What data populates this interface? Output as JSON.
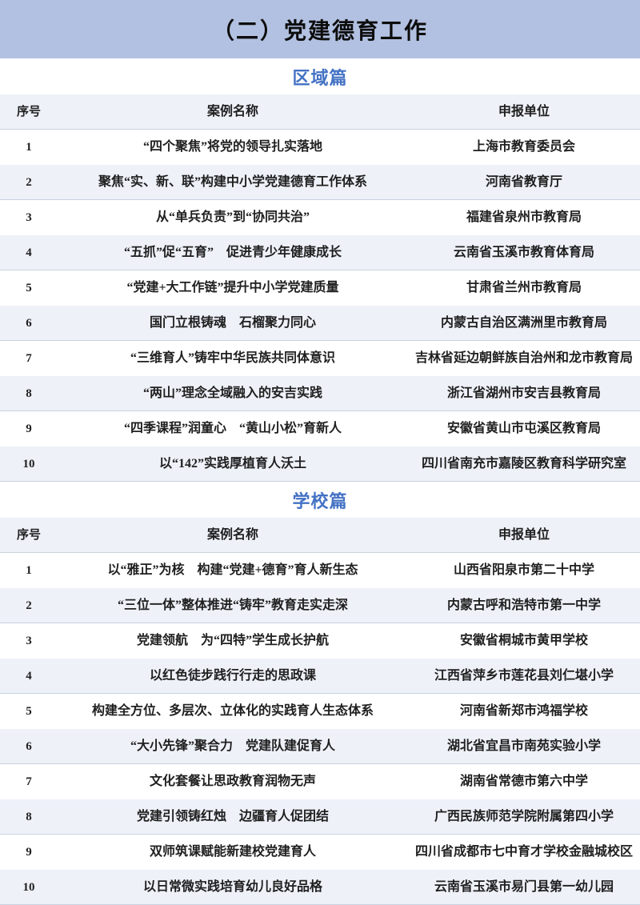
{
  "page": {
    "title": "（二）党建德育工作",
    "colors": {
      "banner_bg": "#b2c1e1",
      "section_title": "#4472c4",
      "row_shaded": "#eef1f8",
      "row_border": "#c9d2e0",
      "text": "#1f1f1f"
    }
  },
  "table_headers": {
    "index": "序号",
    "case_name": "案例名称",
    "unit": "申报单位"
  },
  "sections": [
    {
      "title": "区域篇",
      "rows": [
        {
          "index": "1",
          "case": "“四个聚焦”将党的领导扎实落地",
          "unit": "上海市教育委员会"
        },
        {
          "index": "2",
          "case": "聚焦“实、新、联”构建中小学党建德育工作体系",
          "unit": "河南省教育厅"
        },
        {
          "index": "3",
          "case": "从“单兵负责”到“协同共治”",
          "unit": "福建省泉州市教育局"
        },
        {
          "index": "4",
          "case": "“五抓”促“五育”　促进青少年健康成长",
          "unit": "云南省玉溪市教育体育局"
        },
        {
          "index": "5",
          "case": "“党建+大工作链”提升中小学党建质量",
          "unit": "甘肃省兰州市教育局"
        },
        {
          "index": "6",
          "case": "国门立根铸魂　石榴聚力同心",
          "unit": "内蒙古自治区满洲里市教育局"
        },
        {
          "index": "7",
          "case": "“三维育人”铸牢中华民族共同体意识",
          "unit": "吉林省延边朝鲜族自治州和龙市教育局"
        },
        {
          "index": "8",
          "case": "“两山”理念全域融入的安吉实践",
          "unit": "浙江省湖州市安吉县教育局"
        },
        {
          "index": "9",
          "case": "“四季课程”润童心　“黄山小松”育新人",
          "unit": "安徽省黄山市屯溪区教育局"
        },
        {
          "index": "10",
          "case": "以“142”实践厚植育人沃土",
          "unit": "四川省南充市嘉陵区教育科学研究室"
        }
      ]
    },
    {
      "title": "学校篇",
      "rows": [
        {
          "index": "1",
          "case": "以“雅正”为核　构建“党建+德育”育人新生态",
          "unit": "山西省阳泉市第二十中学"
        },
        {
          "index": "2",
          "case": "“三位一体”整体推进“铸牢”教育走实走深",
          "unit": "内蒙古呼和浩特市第一中学"
        },
        {
          "index": "3",
          "case": "党建领航　为“四特”学生成长护航",
          "unit": "安徽省桐城市黄甲学校"
        },
        {
          "index": "4",
          "case": "以红色徒步践行行走的思政课",
          "unit": "江西省萍乡市莲花县刘仁堪小学"
        },
        {
          "index": "5",
          "case": "构建全方位、多层次、立体化的实践育人生态体系",
          "unit": "河南省新郑市鸿福学校"
        },
        {
          "index": "6",
          "case": "“大小先锋”聚合力　党建队建促育人",
          "unit": "湖北省宜昌市南苑实验小学"
        },
        {
          "index": "7",
          "case": "文化套餐让思政教育润物无声",
          "unit": "湖南省常德市第六中学"
        },
        {
          "index": "8",
          "case": "党建引领铸红烛　边疆育人促团结",
          "unit": "广西民族师范学院附属第四小学"
        },
        {
          "index": "9",
          "case": "双师筑课赋能新建校党建育人",
          "unit": "四川省成都市七中育才学校金融城校区"
        },
        {
          "index": "10",
          "case": "以日常微实践培育幼儿良好品格",
          "unit": "云南省玉溪市易门县第一幼儿园"
        }
      ]
    }
  ]
}
